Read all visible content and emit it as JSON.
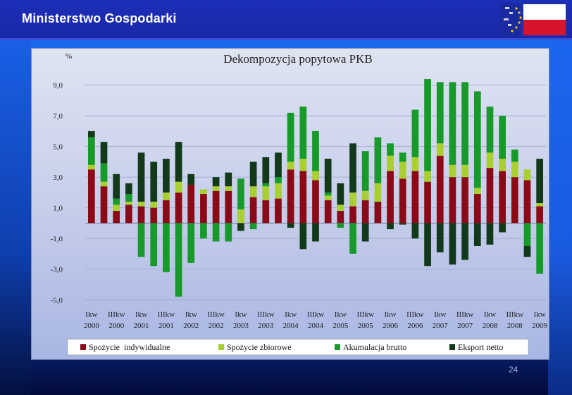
{
  "header": {
    "ministry": "Ministerstwo Gospodarki"
  },
  "footer": {
    "page_number": "24"
  },
  "colors": {
    "spozycie_indywidualne": "#8b0a18",
    "spozycie_zbiorowe": "#a8d030",
    "akumulacja_brutto": "#179a2a",
    "eksport_netto": "#123a1a"
  },
  "chart_data": {
    "type": "bar",
    "stacked": true,
    "title": "Dekompozycja popytowa PKB",
    "ylabel": "%",
    "ylim": [
      -5.0,
      10.0
    ],
    "yticks": [
      "9,0",
      "7,0",
      "5,0",
      "3,0",
      "1,0",
      "-1,0",
      "-3,0",
      "-5,0"
    ],
    "ytick_values": [
      9,
      7,
      5,
      3,
      1,
      -1,
      -3,
      -5
    ],
    "grid": true,
    "legend_position": "bottom",
    "x_tick_labels": [
      {
        "line1": "Ikw",
        "line2": "2000"
      },
      {
        "line1": "IIIkw",
        "line2": "2000"
      },
      {
        "line1": "Ikw",
        "line2": "2001"
      },
      {
        "line1": "IIIkw",
        "line2": "2001"
      },
      {
        "line1": "Ikw",
        "line2": "2002"
      },
      {
        "line1": "IIIkw",
        "line2": "2002"
      },
      {
        "line1": "Ikw",
        "line2": "2003"
      },
      {
        "line1": "IIIkw",
        "line2": "2003"
      },
      {
        "line1": "Ikw",
        "line2": "2004"
      },
      {
        "line1": "IIIkw",
        "line2": "2004"
      },
      {
        "line1": "Ikw",
        "line2": "2005"
      },
      {
        "line1": "IIIkw",
        "line2": "2005"
      },
      {
        "line1": "Ikw",
        "line2": "2006"
      },
      {
        "line1": "IIIkw",
        "line2": "2006"
      },
      {
        "line1": "Ikw",
        "line2": "2007"
      },
      {
        "line1": "IIIkw",
        "line2": "2007"
      },
      {
        "line1": "Ikw",
        "line2": "2008"
      },
      {
        "line1": "IIIkw",
        "line2": "2008"
      },
      {
        "line1": "Ikw",
        "line2": "2009"
      }
    ],
    "categories": [
      "I 2000",
      "II 2000",
      "III 2000",
      "IV 2000",
      "I 2001",
      "II 2001",
      "III 2001",
      "IV 2001",
      "I 2002",
      "II 2002",
      "III 2002",
      "IV 2002",
      "I 2003",
      "II 2003",
      "III 2003",
      "IV 2003",
      "I 2004",
      "II 2004",
      "III 2004",
      "IV 2004",
      "I 2005",
      "II 2005",
      "III 2005",
      "IV 2005",
      "I 2006",
      "II 2006",
      "III 2006",
      "IV 2006",
      "I 2007",
      "II 2007",
      "III 2007",
      "IV 2007",
      "I 2008",
      "II 2008",
      "III 2008",
      "IV 2008",
      "I 2009"
    ],
    "series": [
      {
        "name": "Spożycie  indywidualne",
        "values": [
          3.5,
          2.4,
          0.8,
          1.2,
          1.1,
          1.0,
          1.5,
          2.0,
          2.5,
          1.9,
          2.1,
          2.1,
          0.0,
          1.7,
          1.5,
          1.6,
          3.5,
          3.4,
          2.8,
          1.5,
          0.8,
          1.1,
          1.5,
          1.4,
          3.4,
          2.9,
          3.4,
          2.7,
          4.4,
          3.0,
          3.0,
          1.9,
          3.6,
          3.4,
          3.0,
          2.8,
          1.1
        ]
      },
      {
        "name": "Spożycie zbiorowe",
        "values": [
          0.3,
          0.3,
          0.4,
          0.2,
          0.3,
          0.4,
          0.5,
          0.7,
          0.0,
          0.3,
          0.3,
          0.3,
          0.9,
          0.7,
          0.9,
          1.0,
          0.5,
          0.8,
          0.6,
          0.3,
          0.4,
          0.9,
          0.6,
          1.2,
          1.0,
          1.1,
          0.9,
          0.7,
          0.8,
          0.8,
          0.8,
          0.4,
          1.0,
          0.8,
          1.0,
          0.7,
          0.2
        ]
      },
      {
        "name": "Akumulacja brutto",
        "values": [
          1.8,
          1.2,
          0.4,
          0.5,
          -2.2,
          -2.8,
          -3.2,
          -4.8,
          -2.6,
          -1.0,
          -1.2,
          -1.2,
          2.0,
          -0.4,
          0.2,
          0.4,
          3.2,
          3.4,
          2.6,
          0.2,
          -0.3,
          -2.0,
          2.6,
          3.0,
          0.8,
          0.6,
          3.1,
          6.0,
          4.0,
          5.4,
          5.4,
          6.3,
          3.0,
          2.8,
          0.8,
          -1.5,
          -3.3
        ]
      },
      {
        "name": "Eksport netto",
        "values": [
          0.4,
          1.4,
          1.6,
          0.7,
          3.2,
          2.6,
          2.2,
          2.6,
          0.7,
          0.0,
          0.6,
          0.9,
          -0.5,
          1.6,
          1.7,
          1.6,
          -0.3,
          -1.7,
          -1.2,
          2.2,
          1.4,
          3.2,
          -1.2,
          0.0,
          -0.4,
          -0.1,
          -1.0,
          -2.8,
          -1.9,
          -2.7,
          -2.4,
          -1.5,
          -1.4,
          -0.6,
          0.0,
          -0.7,
          2.9
        ]
      }
    ]
  }
}
